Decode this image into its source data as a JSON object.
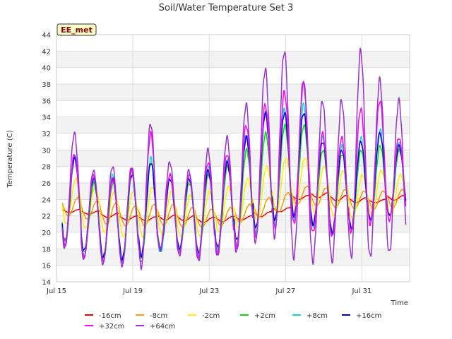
{
  "chart_data": {
    "type": "line",
    "title": "Soil/Water Temperature Set 3",
    "xlabel": "Time",
    "ylabel": "Temperature (C)",
    "annotation": "EE_met",
    "xlim": [
      0,
      18.5
    ],
    "ylim": [
      14,
      44
    ],
    "yticks": [
      14,
      16,
      18,
      20,
      22,
      24,
      26,
      28,
      30,
      32,
      34,
      36,
      38,
      40,
      42,
      44
    ],
    "xticks": [
      {
        "label": "Jul 15",
        "day": 0
      },
      {
        "label": "Jul 19",
        "day": 4
      },
      {
        "label": "Jul 23",
        "day": 8
      },
      {
        "label": "Jul 27",
        "day": 12
      },
      {
        "label": "Jul 31",
        "day": 16
      }
    ],
    "grid": true,
    "legend_position": "bottom",
    "daily_peak_minimum_by_depth": {
      "days": [
        0,
        1,
        2,
        3,
        4,
        5,
        6,
        7,
        8,
        9,
        10,
        11,
        12,
        13,
        14,
        15,
        16,
        17
      ],
      "series": [
        {
          "name": "-16cm",
          "color": "#ee0000",
          "peak": [
            22.8,
            22.6,
            22.3,
            22.0,
            21.9,
            22.1,
            22.0,
            21.8,
            21.9,
            22.0,
            22.5,
            23.0,
            24.5,
            24.8,
            24.5,
            24.2,
            24.0,
            24.5
          ],
          "min": [
            22.4,
            22.2,
            21.8,
            21.5,
            21.4,
            21.5,
            21.4,
            21.2,
            21.3,
            21.5,
            21.9,
            22.5,
            24.0,
            24.2,
            23.8,
            23.6,
            23.6,
            23.9
          ]
        },
        {
          "name": "-8cm",
          "color": "#ff9900",
          "peak": [
            24.2,
            23.8,
            23.6,
            23.2,
            23.4,
            23.4,
            23.0,
            22.8,
            23.0,
            23.4,
            24.2,
            24.8,
            25.6,
            25.4,
            25.2,
            25.0,
            25.0,
            25.2
          ],
          "min": [
            22.0,
            21.6,
            21.0,
            20.8,
            20.8,
            20.8,
            20.6,
            20.6,
            20.8,
            21.2,
            21.8,
            22.4,
            23.4,
            23.2,
            23.0,
            22.8,
            22.8,
            23.0
          ]
        },
        {
          "name": "-2cm",
          "color": "#ffee00",
          "peak": [
            26.5,
            25.5,
            25.0,
            25.0,
            25.5,
            25.0,
            24.5,
            25.0,
            25.5,
            26.5,
            28.0,
            29.0,
            29.0,
            28.0,
            27.5,
            27.0,
            27.5,
            27.0
          ],
          "min": [
            21.0,
            20.5,
            20.0,
            19.5,
            19.5,
            19.8,
            19.5,
            19.5,
            20.0,
            20.5,
            21.5,
            22.5,
            23.0,
            22.5,
            22.0,
            21.5,
            22.0,
            22.0
          ]
        },
        {
          "name": "+2cm",
          "color": "#00dd00",
          "peak": [
            29.0,
            26.0,
            26.0,
            27.0,
            28.5,
            26.5,
            26.0,
            27.0,
            28.0,
            30.0,
            32.0,
            33.0,
            33.0,
            30.0,
            29.5,
            30.0,
            30.5,
            30.0
          ],
          "min": [
            18.8,
            17.5,
            16.8,
            16.5,
            17.0,
            18.0,
            18.0,
            17.5,
            18.0,
            19.0,
            20.5,
            21.5,
            22.0,
            21.0,
            20.0,
            20.5,
            21.5,
            22.0
          ]
        },
        {
          "name": "+8cm",
          "color": "#00dddd",
          "peak": [
            29.5,
            27.0,
            27.0,
            27.5,
            29.0,
            27.0,
            27.0,
            28.0,
            29.0,
            32.0,
            34.5,
            35.0,
            35.5,
            31.5,
            30.5,
            31.5,
            32.5,
            31.0
          ],
          "min": [
            18.5,
            17.2,
            16.5,
            16.2,
            16.8,
            17.5,
            17.8,
            17.2,
            17.8,
            18.5,
            20.0,
            21.0,
            21.5,
            20.5,
            19.5,
            20.0,
            21.0,
            21.5
          ]
        },
        {
          "name": "+16cm",
          "color": "#0000cc",
          "peak": [
            29.0,
            26.5,
            26.5,
            27.0,
            28.5,
            26.5,
            26.5,
            27.5,
            28.5,
            31.5,
            34.5,
            34.5,
            34.5,
            31.0,
            30.0,
            31.0,
            32.0,
            30.5
          ],
          "min": [
            19.0,
            17.8,
            17.0,
            16.8,
            17.2,
            18.0,
            18.0,
            17.5,
            18.2,
            19.0,
            20.5,
            21.5,
            22.0,
            21.0,
            20.0,
            20.5,
            21.5,
            22.0
          ]
        },
        {
          "name": "+32cm",
          "color": "#ff00ff",
          "peak": [
            29.5,
            27.0,
            26.5,
            27.5,
            32.0,
            27.0,
            27.0,
            28.5,
            29.5,
            33.0,
            35.5,
            37.0,
            38.0,
            32.0,
            31.5,
            35.0,
            36.0,
            31.5
          ],
          "min": [
            18.5,
            17.0,
            16.5,
            16.2,
            16.2,
            18.0,
            17.5,
            17.0,
            17.5,
            18.2,
            19.5,
            20.5,
            21.0,
            20.0,
            19.5,
            20.0,
            21.0,
            21.5
          ]
        },
        {
          "name": "+64cm",
          "color": "#9933cc",
          "peak": [
            32.0,
            27.5,
            28.0,
            28.0,
            33.2,
            28.5,
            27.5,
            30.0,
            31.5,
            35.5,
            39.8,
            42.0,
            38.5,
            36.0,
            36.0,
            42.0,
            38.5,
            36.0
          ],
          "min": [
            18.0,
            16.8,
            16.2,
            16.0,
            15.8,
            17.8,
            17.2,
            16.5,
            17.0,
            17.5,
            18.8,
            19.5,
            17.0,
            16.5,
            16.5,
            17.0,
            17.0,
            17.5
          ]
        }
      ]
    }
  }
}
